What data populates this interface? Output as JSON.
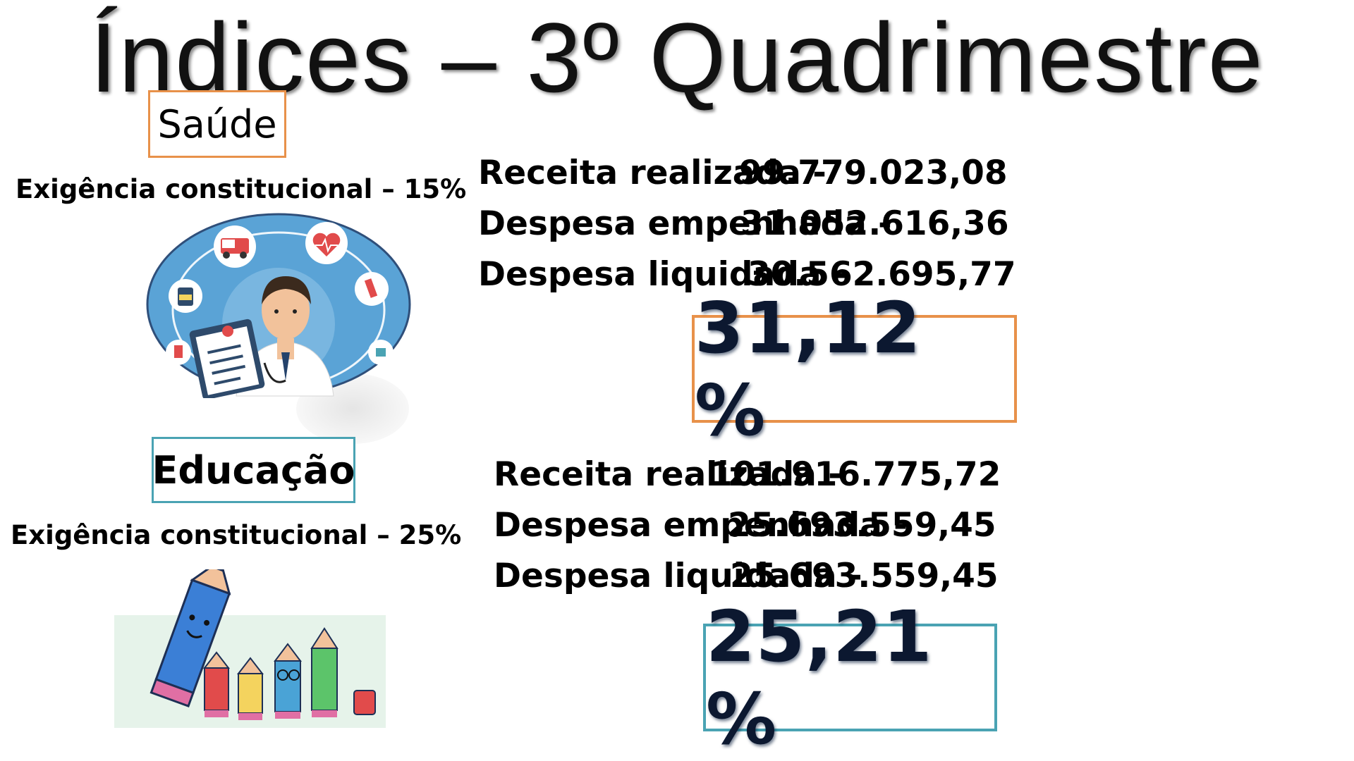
{
  "title": "Índices – 3º Quadrimestre",
  "saude": {
    "label": "Saúde",
    "exigencia": "Exigência constitucional – 15%",
    "rows": [
      {
        "label": "Receita realizada  -",
        "value": "99.779.023,08"
      },
      {
        "label": "Despesa empenhada -",
        "value": "31.052.616,36"
      },
      {
        "label": "Despesa liquidada -",
        "value": "30.562.695,77"
      }
    ],
    "percent": "31,12 %"
  },
  "educacao": {
    "label": "Educação",
    "exigencia": "Exigência constitucional – 25%",
    "rows": [
      {
        "label": "Receita realizada  -",
        "value": "101.916.775,72"
      },
      {
        "label": "Despesa empenhada -",
        "value": "25.693.559,45"
      },
      {
        "label": "Despesa liquidada -",
        "value": "25.693.559,45"
      }
    ],
    "percent": "25,21 %"
  },
  "colors": {
    "saude_accent": "#e8914a",
    "educacao_accent": "#4aa3b3",
    "percent_text": "#0c1830"
  },
  "icons": [
    "doctor-illustration",
    "ambulance-icon",
    "heart-icon",
    "medicine-jar-icon",
    "syringe-icon",
    "pencils-illustration"
  ]
}
